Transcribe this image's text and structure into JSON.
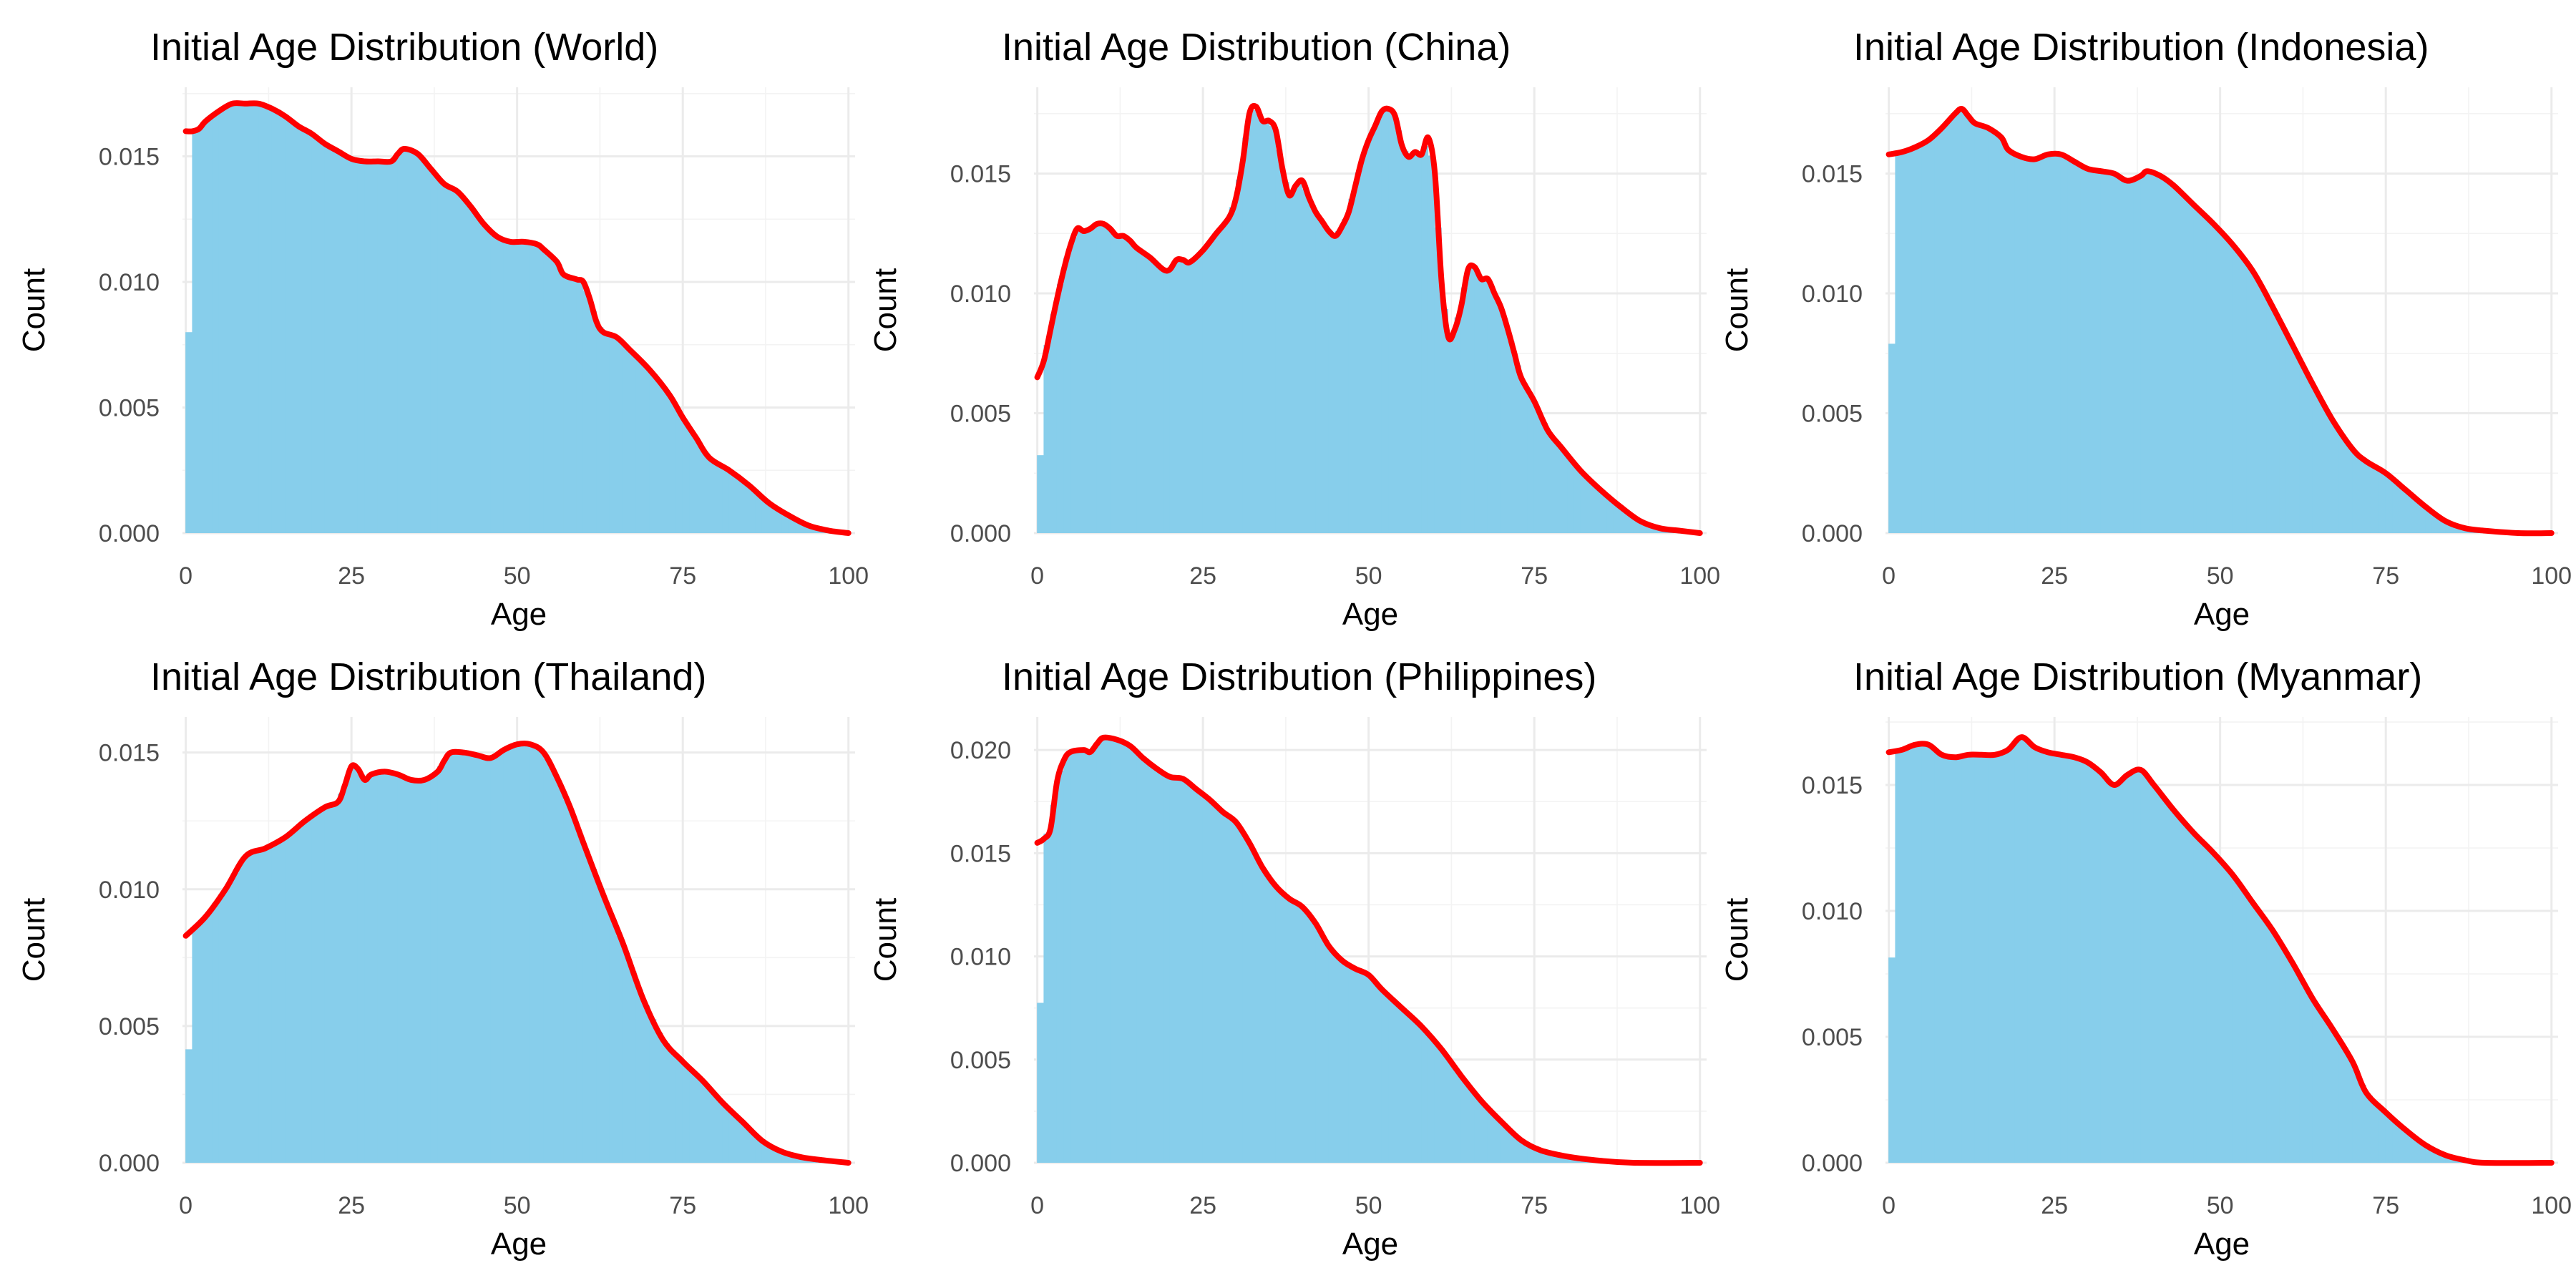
{
  "colors": {
    "bars": "#87CEEB",
    "density": "#FF0000",
    "grid_major": "#EBEBEB",
    "grid_minor": "#F3F3F3"
  },
  "chart_data": [
    {
      "type": "histogram+density",
      "title": "Initial Age Distribution (World)",
      "xlabel": "Age",
      "ylabel": "Count",
      "xlim": [
        -0.5,
        101
      ],
      "ylim": [
        0,
        0.01775
      ],
      "xticks": [
        "0",
        "25",
        "50",
        "75",
        "100"
      ],
      "xtick_values": [
        0,
        25,
        50,
        75,
        100
      ],
      "yticks": [
        "0.000",
        "0.005",
        "0.010",
        "0.015"
      ],
      "ytick_values": [
        0,
        0.005,
        0.01,
        0.015
      ],
      "density": [
        [
          0,
          0.016
        ],
        [
          1,
          0.016
        ],
        [
          2,
          0.0161
        ],
        [
          3,
          0.0164
        ],
        [
          5,
          0.0168
        ],
        [
          7,
          0.0171
        ],
        [
          9,
          0.0171
        ],
        [
          11,
          0.0171
        ],
        [
          13,
          0.0169
        ],
        [
          15,
          0.0166
        ],
        [
          17,
          0.0162
        ],
        [
          19,
          0.0159
        ],
        [
          21,
          0.0155
        ],
        [
          23,
          0.0152
        ],
        [
          25,
          0.0149
        ],
        [
          27,
          0.0148
        ],
        [
          29,
          0.0148
        ],
        [
          31,
          0.0148
        ],
        [
          32,
          0.0151
        ],
        [
          33,
          0.0153
        ],
        [
          35,
          0.0151
        ],
        [
          37,
          0.0145
        ],
        [
          39,
          0.0139
        ],
        [
          41,
          0.0136
        ],
        [
          43,
          0.013
        ],
        [
          45,
          0.0123
        ],
        [
          47,
          0.0118
        ],
        [
          49,
          0.0116
        ],
        [
          51,
          0.0116
        ],
        [
          53,
          0.0115
        ],
        [
          54,
          0.0113
        ],
        [
          56,
          0.0108
        ],
        [
          57,
          0.0103
        ],
        [
          59,
          0.0101
        ],
        [
          60,
          0.01
        ],
        [
          61,
          0.0093
        ],
        [
          62,
          0.0084
        ],
        [
          63,
          0.008
        ],
        [
          65,
          0.0078
        ],
        [
          67,
          0.0073
        ],
        [
          70,
          0.0065
        ],
        [
          73,
          0.0055
        ],
        [
          75,
          0.0046
        ],
        [
          77,
          0.0038
        ],
        [
          79,
          0.003
        ],
        [
          82,
          0.0025
        ],
        [
          85,
          0.0019
        ],
        [
          88,
          0.0012
        ],
        [
          91,
          0.0007
        ],
        [
          94,
          0.0003
        ],
        [
          97,
          0.0001
        ],
        [
          100,
          0.0
        ]
      ]
    },
    {
      "type": "histogram+density",
      "title": "Initial Age Distribution (China)",
      "xlabel": "Age",
      "ylabel": "Count",
      "xlim": [
        -0.5,
        101
      ],
      "ylim": [
        0,
        0.0186
      ],
      "xticks": [
        "0",
        "25",
        "50",
        "75",
        "100"
      ],
      "xtick_values": [
        0,
        25,
        50,
        75,
        100
      ],
      "yticks": [
        "0.000",
        "0.005",
        "0.010",
        "0.015"
      ],
      "ytick_values": [
        0,
        0.005,
        0.01,
        0.015
      ],
      "density": [
        [
          0,
          0.0065
        ],
        [
          1,
          0.0072
        ],
        [
          2,
          0.0085
        ],
        [
          3,
          0.0098
        ],
        [
          4,
          0.011
        ],
        [
          5,
          0.012
        ],
        [
          6,
          0.0127
        ],
        [
          7,
          0.0126
        ],
        [
          8,
          0.0127
        ],
        [
          9,
          0.0129
        ],
        [
          10,
          0.0129
        ],
        [
          11,
          0.0127
        ],
        [
          12,
          0.0124
        ],
        [
          13,
          0.0124
        ],
        [
          14,
          0.0122
        ],
        [
          15,
          0.0119
        ],
        [
          17,
          0.0115
        ],
        [
          19,
          0.011
        ],
        [
          20,
          0.011
        ],
        [
          21,
          0.0114
        ],
        [
          22,
          0.0114
        ],
        [
          23,
          0.0113
        ],
        [
          25,
          0.0118
        ],
        [
          27,
          0.0125
        ],
        [
          29,
          0.0132
        ],
        [
          30,
          0.014
        ],
        [
          31,
          0.0155
        ],
        [
          32,
          0.0175
        ],
        [
          33,
          0.0178
        ],
        [
          34,
          0.0172
        ],
        [
          35,
          0.0172
        ],
        [
          36,
          0.0168
        ],
        [
          37,
          0.0152
        ],
        [
          38,
          0.0141
        ],
        [
          39,
          0.0145
        ],
        [
          40,
          0.0147
        ],
        [
          41,
          0.014
        ],
        [
          42,
          0.0134
        ],
        [
          43,
          0.013
        ],
        [
          44,
          0.0126
        ],
        [
          45,
          0.0124
        ],
        [
          46,
          0.0128
        ],
        [
          47,
          0.0134
        ],
        [
          48,
          0.0145
        ],
        [
          49,
          0.0156
        ],
        [
          50,
          0.0164
        ],
        [
          51,
          0.017
        ],
        [
          52,
          0.0176
        ],
        [
          53,
          0.0177
        ],
        [
          54,
          0.0174
        ],
        [
          55,
          0.0162
        ],
        [
          56,
          0.0157
        ],
        [
          57,
          0.0159
        ],
        [
          58,
          0.0158
        ],
        [
          59,
          0.0165
        ],
        [
          60,
          0.015
        ],
        [
          61,
          0.0105
        ],
        [
          62,
          0.0082
        ],
        [
          63,
          0.0085
        ],
        [
          64,
          0.0095
        ],
        [
          65,
          0.011
        ],
        [
          66,
          0.0111
        ],
        [
          67,
          0.0106
        ],
        [
          68,
          0.0106
        ],
        [
          69,
          0.01
        ],
        [
          70,
          0.0094
        ],
        [
          71,
          0.0085
        ],
        [
          72,
          0.0075
        ],
        [
          73,
          0.0065
        ],
        [
          75,
          0.0055
        ],
        [
          77,
          0.0043
        ],
        [
          79,
          0.0036
        ],
        [
          82,
          0.0026
        ],
        [
          85,
          0.0018
        ],
        [
          88,
          0.0011
        ],
        [
          91,
          0.0005
        ],
        [
          94,
          0.0002
        ],
        [
          97,
          0.0001
        ],
        [
          100,
          0.0
        ]
      ]
    },
    {
      "type": "histogram+density",
      "title": "Initial Age Distribution (Indonesia)",
      "xlabel": "Age",
      "ylabel": "Count",
      "xlim": [
        -0.5,
        101
      ],
      "ylim": [
        0,
        0.0186
      ],
      "xticks": [
        "0",
        "25",
        "50",
        "75",
        "100"
      ],
      "xtick_values": [
        0,
        25,
        50,
        75,
        100
      ],
      "yticks": [
        "0.000",
        "0.005",
        "0.010",
        "0.015"
      ],
      "ytick_values": [
        0,
        0.005,
        0.01,
        0.015
      ],
      "density": [
        [
          0,
          0.0158
        ],
        [
          2,
          0.0159
        ],
        [
          4,
          0.0161
        ],
        [
          6,
          0.0164
        ],
        [
          8,
          0.0169
        ],
        [
          10,
          0.0175
        ],
        [
          11,
          0.0177
        ],
        [
          12,
          0.0174
        ],
        [
          13,
          0.0171
        ],
        [
          15,
          0.0169
        ],
        [
          17,
          0.0165
        ],
        [
          18,
          0.016
        ],
        [
          20,
          0.0157
        ],
        [
          22,
          0.0156
        ],
        [
          24,
          0.0158
        ],
        [
          26,
          0.0158
        ],
        [
          28,
          0.0155
        ],
        [
          30,
          0.0152
        ],
        [
          32,
          0.0151
        ],
        [
          34,
          0.015
        ],
        [
          36,
          0.0147
        ],
        [
          38,
          0.0149
        ],
        [
          39,
          0.0151
        ],
        [
          41,
          0.0149
        ],
        [
          43,
          0.0145
        ],
        [
          46,
          0.0137
        ],
        [
          49,
          0.0129
        ],
        [
          52,
          0.012
        ],
        [
          55,
          0.0109
        ],
        [
          58,
          0.0094
        ],
        [
          61,
          0.0078
        ],
        [
          64,
          0.0062
        ],
        [
          67,
          0.0047
        ],
        [
          70,
          0.0035
        ],
        [
          72,
          0.003
        ],
        [
          75,
          0.0025
        ],
        [
          78,
          0.0018
        ],
        [
          81,
          0.0011
        ],
        [
          84,
          0.0005
        ],
        [
          87,
          0.0002
        ],
        [
          90,
          0.0001
        ],
        [
          95,
          0.0
        ],
        [
          100,
          0.0
        ]
      ]
    },
    {
      "type": "histogram+density",
      "title": "Initial Age Distribution (Thailand)",
      "xlabel": "Age",
      "ylabel": "Count",
      "xlim": [
        -0.5,
        101
      ],
      "ylim": [
        0,
        0.0163
      ],
      "xticks": [
        "0",
        "25",
        "50",
        "75",
        "100"
      ],
      "xtick_values": [
        0,
        25,
        50,
        75,
        100
      ],
      "yticks": [
        "0.000",
        "0.005",
        "0.010",
        "0.015"
      ],
      "ytick_values": [
        0,
        0.005,
        0.01,
        0.015
      ],
      "density": [
        [
          0,
          0.0083
        ],
        [
          3,
          0.009
        ],
        [
          6,
          0.01
        ],
        [
          9,
          0.0112
        ],
        [
          12,
          0.0115
        ],
        [
          15,
          0.0119
        ],
        [
          18,
          0.0125
        ],
        [
          21,
          0.013
        ],
        [
          23,
          0.0132
        ],
        [
          24,
          0.0138
        ],
        [
          25,
          0.0145
        ],
        [
          26,
          0.0144
        ],
        [
          27,
          0.014
        ],
        [
          28,
          0.0142
        ],
        [
          30,
          0.0143
        ],
        [
          32,
          0.0142
        ],
        [
          34,
          0.014
        ],
        [
          36,
          0.014
        ],
        [
          38,
          0.0143
        ],
        [
          39,
          0.0147
        ],
        [
          40,
          0.015
        ],
        [
          42,
          0.015
        ],
        [
          44,
          0.0149
        ],
        [
          46,
          0.0148
        ],
        [
          48,
          0.0151
        ],
        [
          50,
          0.0153
        ],
        [
          52,
          0.0153
        ],
        [
          54,
          0.015
        ],
        [
          56,
          0.0141
        ],
        [
          58,
          0.013
        ],
        [
          60,
          0.0117
        ],
        [
          63,
          0.0098
        ],
        [
          66,
          0.008
        ],
        [
          69,
          0.006
        ],
        [
          72,
          0.0045
        ],
        [
          75,
          0.0037
        ],
        [
          78,
          0.003
        ],
        [
          81,
          0.0022
        ],
        [
          84,
          0.0015
        ],
        [
          87,
          0.0008
        ],
        [
          90,
          0.0004
        ],
        [
          93,
          0.0002
        ],
        [
          96,
          0.0001
        ],
        [
          100,
          0.0
        ]
      ]
    },
    {
      "type": "histogram+density",
      "title": "Initial Age Distribution (Philippines)",
      "xlabel": "Age",
      "ylabel": "Count",
      "xlim": [
        -0.5,
        101
      ],
      "ylim": [
        0,
        0.0216
      ],
      "xticks": [
        "0",
        "25",
        "50",
        "75",
        "100"
      ],
      "xtick_values": [
        0,
        25,
        50,
        75,
        100
      ],
      "yticks": [
        "0.000",
        "0.005",
        "0.010",
        "0.015",
        "0.020"
      ],
      "ytick_values": [
        0,
        0.005,
        0.01,
        0.015,
        0.02
      ],
      "density": [
        [
          0,
          0.0155
        ],
        [
          1,
          0.0157
        ],
        [
          2,
          0.0162
        ],
        [
          3,
          0.0185
        ],
        [
          4,
          0.0195
        ],
        [
          5,
          0.0199
        ],
        [
          7,
          0.02
        ],
        [
          8,
          0.0199
        ],
        [
          9,
          0.0203
        ],
        [
          10,
          0.0206
        ],
        [
          12,
          0.0205
        ],
        [
          14,
          0.0202
        ],
        [
          16,
          0.0196
        ],
        [
          18,
          0.0191
        ],
        [
          20,
          0.0187
        ],
        [
          22,
          0.0186
        ],
        [
          24,
          0.0181
        ],
        [
          26,
          0.0176
        ],
        [
          28,
          0.017
        ],
        [
          30,
          0.0165
        ],
        [
          32,
          0.0155
        ],
        [
          34,
          0.0143
        ],
        [
          36,
          0.0134
        ],
        [
          38,
          0.0128
        ],
        [
          40,
          0.0124
        ],
        [
          42,
          0.0116
        ],
        [
          44,
          0.0105
        ],
        [
          46,
          0.0098
        ],
        [
          48,
          0.0094
        ],
        [
          50,
          0.0091
        ],
        [
          52,
          0.0084
        ],
        [
          55,
          0.0075
        ],
        [
          58,
          0.0066
        ],
        [
          61,
          0.0055
        ],
        [
          64,
          0.0042
        ],
        [
          67,
          0.003
        ],
        [
          70,
          0.002
        ],
        [
          73,
          0.0011
        ],
        [
          76,
          0.0006
        ],
        [
          80,
          0.0003
        ],
        [
          85,
          0.0001
        ],
        [
          90,
          0.0
        ],
        [
          100,
          0.0
        ]
      ]
    },
    {
      "type": "histogram+density",
      "title": "Initial Age Distribution (Myanmar)",
      "xlabel": "Age",
      "ylabel": "Count",
      "xlim": [
        -0.5,
        101
      ],
      "ylim": [
        0,
        0.0177
      ],
      "xticks": [
        "0",
        "25",
        "50",
        "75",
        "100"
      ],
      "xtick_values": [
        0,
        25,
        50,
        75,
        100
      ],
      "yticks": [
        "0.000",
        "0.005",
        "0.010",
        "0.015"
      ],
      "ytick_values": [
        0,
        0.005,
        0.01,
        0.015
      ],
      "density": [
        [
          0,
          0.0163
        ],
        [
          2,
          0.0164
        ],
        [
          4,
          0.0166
        ],
        [
          6,
          0.0166
        ],
        [
          8,
          0.0162
        ],
        [
          10,
          0.0161
        ],
        [
          12,
          0.0162
        ],
        [
          14,
          0.0162
        ],
        [
          16,
          0.0162
        ],
        [
          18,
          0.0164
        ],
        [
          20,
          0.0169
        ],
        [
          22,
          0.0165
        ],
        [
          24,
          0.0163
        ],
        [
          26,
          0.0162
        ],
        [
          28,
          0.0161
        ],
        [
          30,
          0.0159
        ],
        [
          32,
          0.0155
        ],
        [
          34,
          0.015
        ],
        [
          36,
          0.0154
        ],
        [
          38,
          0.0156
        ],
        [
          40,
          0.015
        ],
        [
          43,
          0.014
        ],
        [
          46,
          0.0131
        ],
        [
          49,
          0.0123
        ],
        [
          52,
          0.0114
        ],
        [
          55,
          0.0103
        ],
        [
          58,
          0.0092
        ],
        [
          61,
          0.0079
        ],
        [
          64,
          0.0065
        ],
        [
          67,
          0.0053
        ],
        [
          70,
          0.004
        ],
        [
          72,
          0.0028
        ],
        [
          75,
          0.002
        ],
        [
          78,
          0.0013
        ],
        [
          81,
          0.0007
        ],
        [
          84,
          0.0003
        ],
        [
          87,
          0.0001
        ],
        [
          90,
          0.0
        ],
        [
          100,
          0.0
        ]
      ]
    }
  ]
}
